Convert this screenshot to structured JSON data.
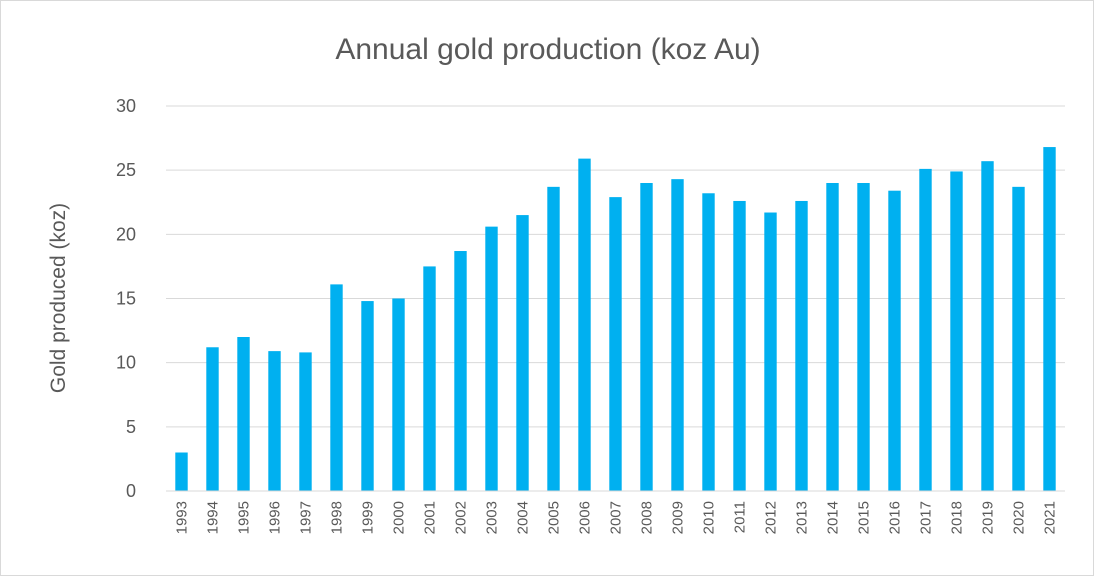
{
  "chart_data": {
    "type": "bar",
    "title": "Annual gold production (koz Au)",
    "xlabel": "",
    "ylabel": "Gold produced (koz)",
    "ylim": [
      0,
      30
    ],
    "yticks": [
      0,
      5,
      10,
      15,
      20,
      25,
      30
    ],
    "grid": true,
    "legend": "none",
    "bar_color": "#00b0f0",
    "categories": [
      "1993",
      "1994",
      "1995",
      "1996",
      "1997",
      "1998",
      "1999",
      "2000",
      "2001",
      "2002",
      "2003",
      "2004",
      "2005",
      "2006",
      "2007",
      "2008",
      "2009",
      "2010",
      "2011",
      "2012",
      "2013",
      "2014",
      "2015",
      "2016",
      "2017",
      "2018",
      "2019",
      "2020",
      "2021"
    ],
    "values": [
      3.0,
      11.2,
      12.0,
      10.9,
      10.8,
      16.1,
      14.8,
      15.0,
      17.5,
      18.7,
      20.6,
      21.5,
      23.7,
      25.9,
      22.9,
      24.0,
      24.3,
      23.2,
      22.6,
      21.7,
      22.6,
      24.0,
      24.0,
      23.4,
      25.1,
      24.9,
      25.7,
      23.7,
      26.8
    ]
  }
}
